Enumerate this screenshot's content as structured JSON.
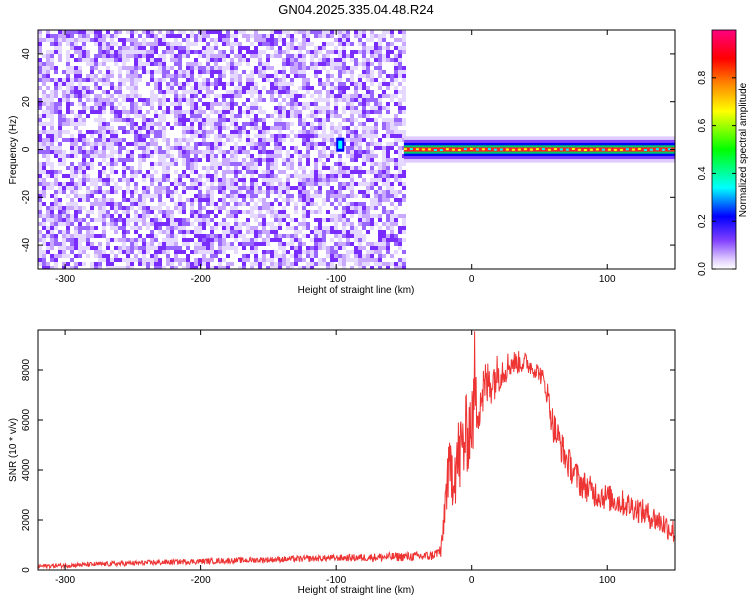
{
  "page_title": "GN04.2025.335.04.48.R24",
  "chart_data": [
    {
      "type": "heatmap",
      "name": "spectrogram",
      "xlabel": "Height of straight line (km)",
      "ylabel": "Frequency (Hz)",
      "xlim": [
        -320,
        150
      ],
      "ylim": [
        -50,
        50
      ],
      "xticks": [
        -300,
        -200,
        -100,
        0,
        100
      ],
      "yticks": [
        -40,
        -20,
        0,
        20,
        40
      ],
      "xtick_labels": [
        "-300",
        "-200",
        "-100",
        "0",
        "100"
      ],
      "ytick_labels": [
        "-40",
        "-20",
        "0",
        "20",
        "40"
      ],
      "noise_region_x": [
        -320,
        -50
      ],
      "tone_region_x": [
        -50,
        150
      ],
      "tone_frequency": 0,
      "tone_half_width": 2.5,
      "colorbar": {
        "label": "Normalized spectral amplitude",
        "range": [
          0,
          1
        ],
        "ticks": [
          0.0,
          0.2,
          0.4,
          0.6,
          0.8
        ],
        "tick_labels": [
          "0.0",
          "0.2",
          "0.4",
          "0.6",
          "0.8"
        ],
        "colormap": [
          "#ffffff",
          "#e0ccff",
          "#8040ff",
          "#0000ff",
          "#00ffff",
          "#00ff00",
          "#ffff00",
          "#ff8000",
          "#ff0000",
          "#ff0080"
        ]
      }
    },
    {
      "type": "line",
      "name": "snr",
      "xlabel": "Height of straight line (km)",
      "ylabel": "SNR (10 * v/v)",
      "xlim": [
        -320,
        150
      ],
      "ylim": [
        0,
        9600
      ],
      "xticks": [
        -300,
        -200,
        -100,
        0,
        100
      ],
      "yticks": [
        0,
        2000,
        4000,
        6000,
        8000
      ],
      "xtick_labels": [
        "-300",
        "-200",
        "-100",
        "0",
        "100"
      ],
      "ytick_labels": [
        "0",
        "2000",
        "4000",
        "6000",
        "8000"
      ],
      "color": "#ee3333",
      "envelope": {
        "x": [
          -320,
          -280,
          -220,
          -160,
          -100,
          -60,
          -30,
          -22,
          -20,
          -18,
          -15,
          -10,
          -5,
          0,
          5,
          10,
          20,
          30,
          40,
          50,
          55,
          60,
          70,
          80,
          90,
          100,
          110,
          120,
          130,
          140,
          150
        ],
        "y": [
          150,
          220,
          320,
          400,
          480,
          520,
          560,
          800,
          2500,
          3600,
          4000,
          4400,
          5200,
          6000,
          6800,
          7300,
          7900,
          8300,
          8300,
          7900,
          7300,
          5800,
          4400,
          3500,
          3100,
          2900,
          2700,
          2500,
          2200,
          1900,
          1500
        ]
      },
      "noise": {
        "x": [
          -320,
          -100,
          -60,
          -25,
          -15,
          -10,
          0,
          10,
          30,
          50,
          60,
          80,
          100,
          150
        ],
        "amp": [
          90,
          130,
          180,
          200,
          1500,
          1800,
          1600,
          1100,
          500,
          350,
          700,
          600,
          550,
          500
        ]
      },
      "peak": {
        "x": 2,
        "y": 9550
      }
    }
  ]
}
